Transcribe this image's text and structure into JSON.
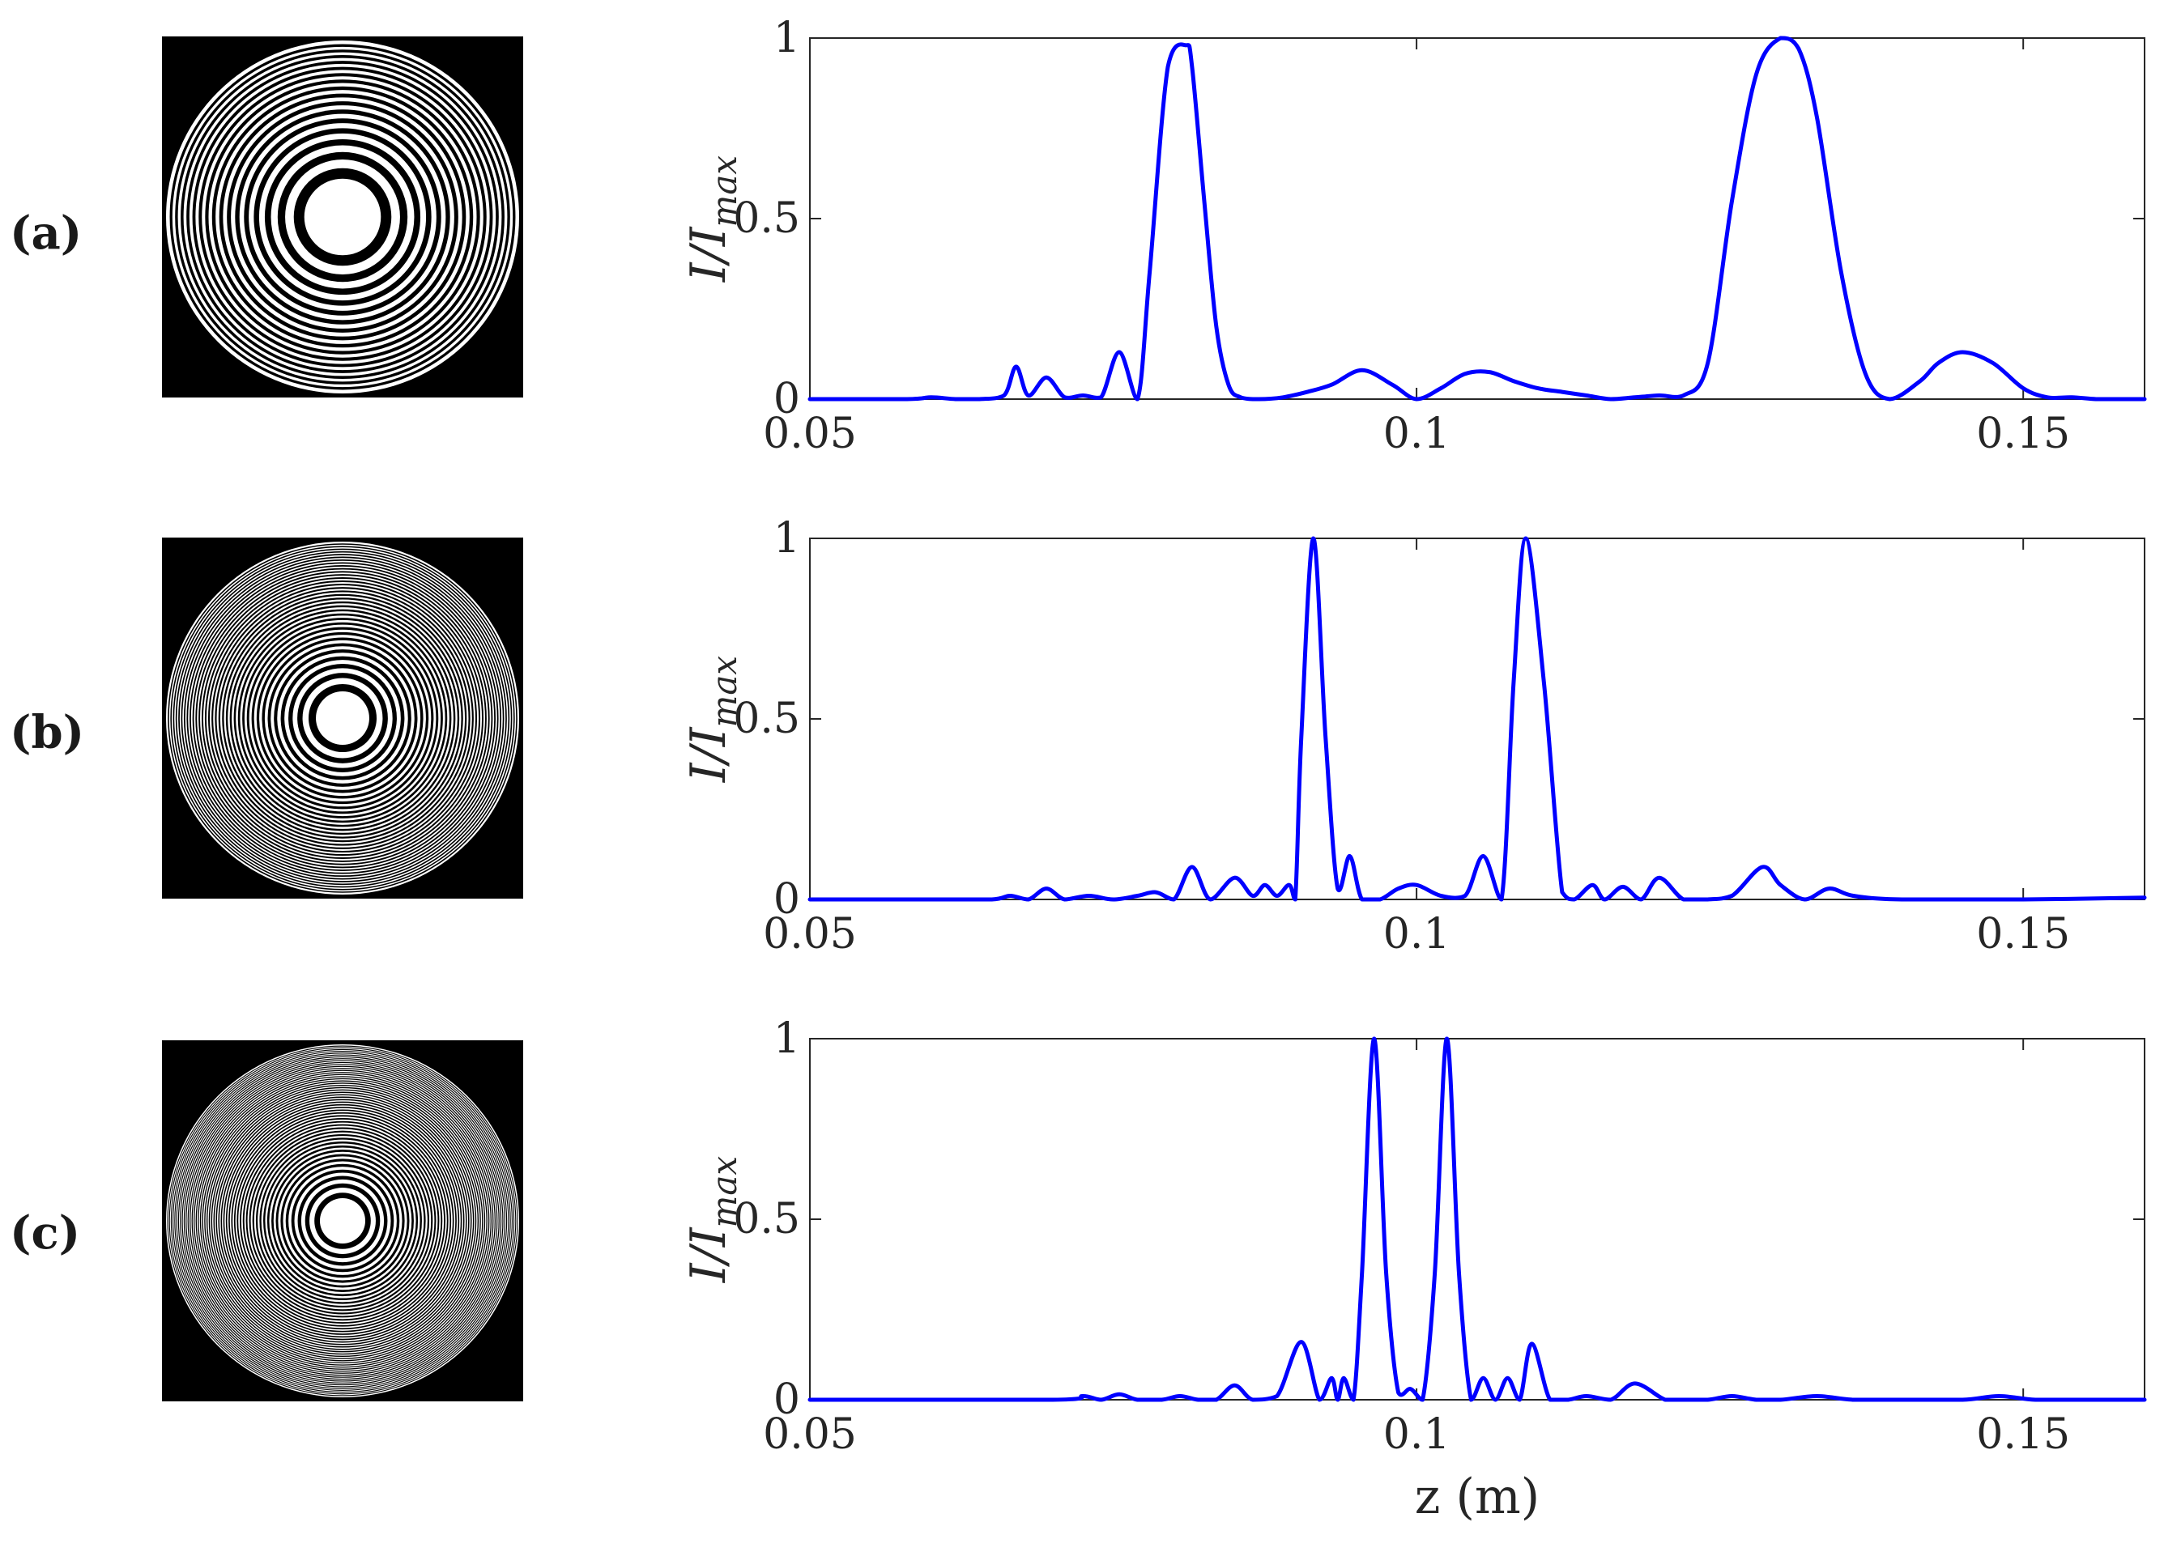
{
  "figure": {
    "panels": [
      {
        "label": "(a)",
        "plate_rings": 16,
        "plate_style": "coarse"
      },
      {
        "label": "(b)",
        "plate_rings": 34,
        "plate_style": "medium"
      },
      {
        "label": "(c)",
        "plate_rings": 50,
        "plate_style": "fine"
      }
    ],
    "line_color": "#0000ff",
    "axis_color": "#262626"
  },
  "chart_data": [
    {
      "type": "line",
      "title": "",
      "xlabel": "",
      "ylabel": "I/I_max",
      "xlim": [
        0.05,
        0.16
      ],
      "ylim": [
        0,
        1
      ],
      "xticks": [
        0.05,
        0.1,
        0.15
      ],
      "xtick_labels": [
        "0.05",
        "0.1",
        "0.15"
      ],
      "yticks": [
        0,
        0.5,
        1
      ],
      "ytick_labels": [
        "0",
        "0.5",
        "1"
      ],
      "grid": false,
      "series": [
        {
          "x": [
            0.05,
            0.058,
            0.06,
            0.062,
            0.064,
            0.066,
            0.067,
            0.068,
            0.0695,
            0.071,
            0.0725,
            0.074,
            0.0755,
            0.077,
            0.078,
            0.0795,
            0.081,
            0.0815,
            0.0825,
            0.0835,
            0.0845,
            0.0855,
            0.087,
            0.089,
            0.091,
            0.093,
            0.0955,
            0.098,
            0.1,
            0.102,
            0.104,
            0.106,
            0.108,
            0.11,
            0.112,
            0.114,
            0.116,
            0.118,
            0.12,
            0.122,
            0.124,
            0.126,
            0.128,
            0.13,
            0.1315,
            0.133,
            0.135,
            0.137,
            0.139,
            0.1415,
            0.143,
            0.145,
            0.1475,
            0.15,
            0.152,
            0.154,
            0.156,
            0.158,
            0.16
          ],
          "y": [
            0.0,
            0.0,
            0.005,
            0.0,
            0.0,
            0.01,
            0.09,
            0.01,
            0.06,
            0.005,
            0.01,
            0.005,
            0.13,
            0.0,
            0.35,
            0.92,
            0.98,
            0.92,
            0.55,
            0.2,
            0.04,
            0.005,
            0.0,
            0.005,
            0.02,
            0.04,
            0.08,
            0.04,
            0.0,
            0.03,
            0.07,
            0.075,
            0.05,
            0.03,
            0.02,
            0.01,
            0.0,
            0.005,
            0.01,
            0.01,
            0.1,
            0.55,
            0.9,
            1.0,
            0.97,
            0.78,
            0.35,
            0.07,
            0.0,
            0.05,
            0.1,
            0.13,
            0.1,
            0.03,
            0.005,
            0.005,
            0.0,
            0.0,
            0.0
          ]
        }
      ]
    },
    {
      "type": "line",
      "title": "",
      "xlabel": "",
      "ylabel": "I/I_max",
      "xlim": [
        0.05,
        0.16
      ],
      "ylim": [
        0,
        1
      ],
      "xticks": [
        0.05,
        0.1,
        0.15
      ],
      "xtick_labels": [
        "0.05",
        "0.1",
        "0.15"
      ],
      "yticks": [
        0,
        0.5,
        1
      ],
      "ytick_labels": [
        "0",
        "0.5",
        "1"
      ],
      "grid": false,
      "series": [
        {
          "x": [
            0.05,
            0.06,
            0.065,
            0.0665,
            0.068,
            0.0695,
            0.071,
            0.073,
            0.075,
            0.077,
            0.0785,
            0.08,
            0.0815,
            0.083,
            0.085,
            0.0865,
            0.0875,
            0.0885,
            0.0895,
            0.09,
            0.0905,
            0.0915,
            0.0925,
            0.0935,
            0.0945,
            0.0955,
            0.097,
            0.0985,
            0.1,
            0.102,
            0.104,
            0.1055,
            0.107,
            0.108,
            0.109,
            0.1105,
            0.112,
            0.113,
            0.1145,
            0.1155,
            0.117,
            0.1185,
            0.12,
            0.122,
            0.124,
            0.126,
            0.1285,
            0.13,
            0.132,
            0.134,
            0.136,
            0.14,
            0.15,
            0.16
          ],
          "y": [
            0.0,
            0.0,
            0.0,
            0.01,
            0.0,
            0.03,
            0.0,
            0.01,
            0.0,
            0.01,
            0.02,
            0.0,
            0.09,
            0.0,
            0.06,
            0.01,
            0.04,
            0.01,
            0.04,
            0.0,
            0.45,
            1.0,
            0.45,
            0.03,
            0.12,
            0.0,
            0.0,
            0.03,
            0.04,
            0.01,
            0.01,
            0.12,
            0.0,
            0.6,
            1.0,
            0.6,
            0.02,
            0.0,
            0.04,
            0.0,
            0.035,
            0.0,
            0.06,
            0.0,
            0.0,
            0.01,
            0.09,
            0.04,
            0.0,
            0.03,
            0.01,
            0.0,
            0.0,
            0.005
          ]
        }
      ]
    },
    {
      "type": "line",
      "title": "",
      "xlabel": "z (m)",
      "ylabel": "I/I_max",
      "xlim": [
        0.05,
        0.16
      ],
      "ylim": [
        0,
        1
      ],
      "xticks": [
        0.05,
        0.1,
        0.15
      ],
      "xtick_labels": [
        "0.05",
        "0.1",
        "0.15"
      ],
      "yticks": [
        0,
        0.5,
        1
      ],
      "ytick_labels": [
        "0",
        "0.5",
        "1"
      ],
      "grid": false,
      "series": [
        {
          "x": [
            0.05,
            0.07,
            0.0725,
            0.074,
            0.0755,
            0.077,
            0.079,
            0.0805,
            0.082,
            0.0835,
            0.085,
            0.0865,
            0.0885,
            0.0905,
            0.092,
            0.093,
            0.0935,
            0.094,
            0.0948,
            0.0955,
            0.0965,
            0.0975,
            0.0985,
            0.0995,
            0.1005,
            0.1015,
            0.1025,
            0.1035,
            0.1045,
            0.1055,
            0.1065,
            0.1075,
            0.1085,
            0.1095,
            0.111,
            0.1125,
            0.114,
            0.116,
            0.118,
            0.1205,
            0.122,
            0.124,
            0.126,
            0.128,
            0.13,
            0.133,
            0.136,
            0.14,
            0.145,
            0.148,
            0.151,
            0.155,
            0.16
          ],
          "y": [
            0.0,
            0.0,
            0.01,
            0.0,
            0.015,
            0.0,
            0.0,
            0.01,
            0.0,
            0.0,
            0.04,
            0.0,
            0.01,
            0.16,
            0.0,
            0.06,
            0.0,
            0.06,
            0.0,
            0.35,
            1.0,
            0.35,
            0.02,
            0.03,
            0.0,
            0.35,
            1.0,
            0.35,
            0.0,
            0.06,
            0.0,
            0.06,
            0.0,
            0.155,
            0.0,
            0.0,
            0.01,
            0.0,
            0.045,
            0.0,
            0.0,
            0.0,
            0.01,
            0.0,
            0.0,
            0.01,
            0.0,
            0.0,
            0.0,
            0.01,
            0.0,
            0.0,
            0.0
          ]
        }
      ]
    }
  ]
}
